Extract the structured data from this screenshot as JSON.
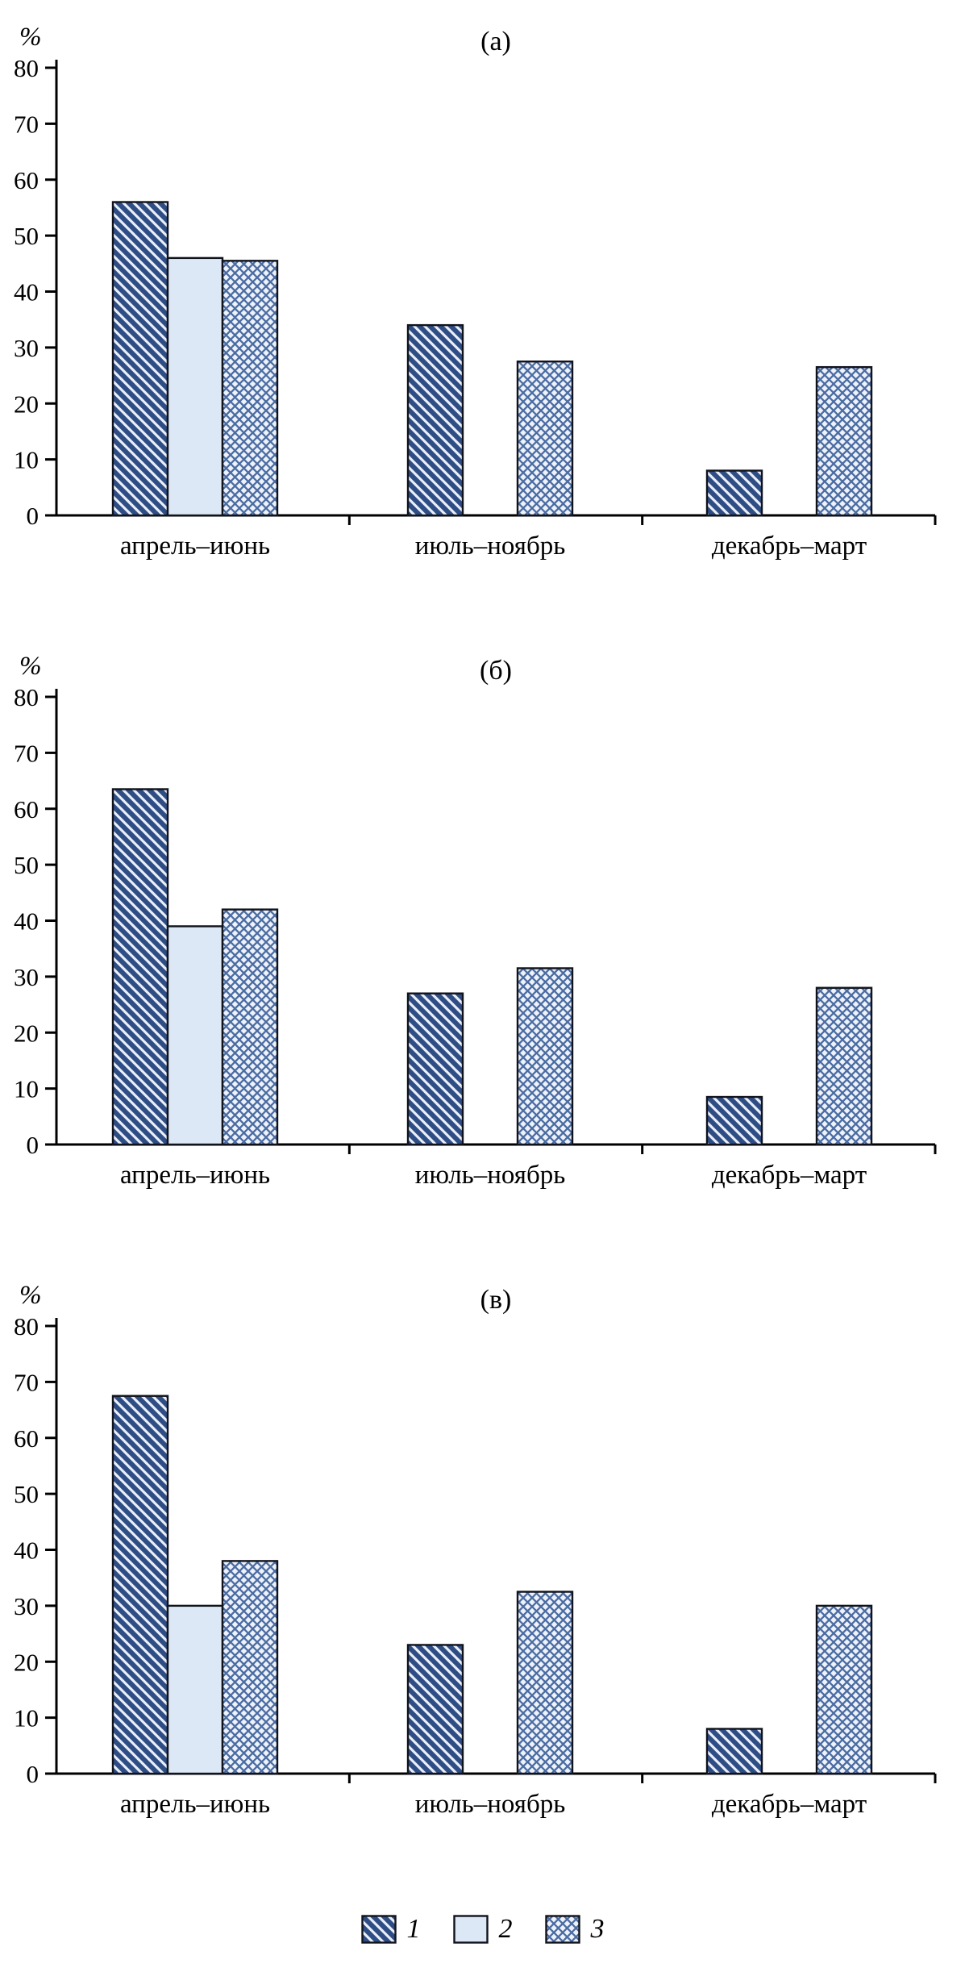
{
  "figure": {
    "kind": "three-panel grouped bar chart figure",
    "panels": [
      "(а)",
      "(б)",
      "(в)"
    ]
  },
  "chart_data": [
    {
      "type": "bar",
      "title": "(а)",
      "xlabel": "",
      "ylabel": "%",
      "ylim": [
        0,
        80
      ],
      "yticks": [
        0,
        10,
        20,
        30,
        40,
        50,
        60,
        70,
        80
      ],
      "grid": false,
      "legend_position": "none",
      "categories": [
        "апрель–июнь",
        "июль–ноябрь",
        "декабрь–март"
      ],
      "series": [
        {
          "name": "1",
          "pattern": "diagonal-hatch",
          "values": [
            56,
            34,
            8
          ]
        },
        {
          "name": "2",
          "pattern": "solid-light",
          "values": [
            46,
            null,
            null
          ]
        },
        {
          "name": "3",
          "pattern": "crosshatch",
          "values": [
            45.5,
            27.5,
            26.5
          ]
        }
      ]
    },
    {
      "type": "bar",
      "title": "(б)",
      "xlabel": "",
      "ylabel": "%",
      "ylim": [
        0,
        80
      ],
      "yticks": [
        0,
        10,
        20,
        30,
        40,
        50,
        60,
        70,
        80
      ],
      "grid": false,
      "legend_position": "none",
      "categories": [
        "апрель–июнь",
        "июль–ноябрь",
        "декабрь–март"
      ],
      "series": [
        {
          "name": "1",
          "pattern": "diagonal-hatch",
          "values": [
            63.5,
            27,
            8.5
          ]
        },
        {
          "name": "2",
          "pattern": "solid-light",
          "values": [
            39,
            null,
            null
          ]
        },
        {
          "name": "3",
          "pattern": "crosshatch",
          "values": [
            42,
            31.5,
            28
          ]
        }
      ]
    },
    {
      "type": "bar",
      "title": "(в)",
      "xlabel": "",
      "ylabel": "%",
      "ylim": [
        0,
        80
      ],
      "yticks": [
        0,
        10,
        20,
        30,
        40,
        50,
        60,
        70,
        80
      ],
      "grid": false,
      "legend_position": "none",
      "categories": [
        "апрель–июнь",
        "июль–ноябрь",
        "декабрь–март"
      ],
      "series": [
        {
          "name": "1",
          "pattern": "diagonal-hatch",
          "values": [
            67.5,
            23,
            8
          ]
        },
        {
          "name": "2",
          "pattern": "solid-light",
          "values": [
            30,
            null,
            null
          ]
        },
        {
          "name": "3",
          "pattern": "crosshatch",
          "values": [
            38,
            32.5,
            30
          ]
        }
      ]
    }
  ],
  "legend": {
    "items": [
      {
        "label": "1",
        "pattern": "diagonal-hatch"
      },
      {
        "label": "2",
        "pattern": "solid-light"
      },
      {
        "label": "3",
        "pattern": "crosshatch"
      }
    ]
  },
  "colors": {
    "hatch_stroke": "#2e4d85",
    "hatch_bg": "#e9eef7",
    "solid_fill": "#dce8f6",
    "crosshatch_stroke": "#4b6ca3",
    "crosshatch_bg": "#eef2f9",
    "bar_outline": "#10131c",
    "axis": "#000000"
  }
}
